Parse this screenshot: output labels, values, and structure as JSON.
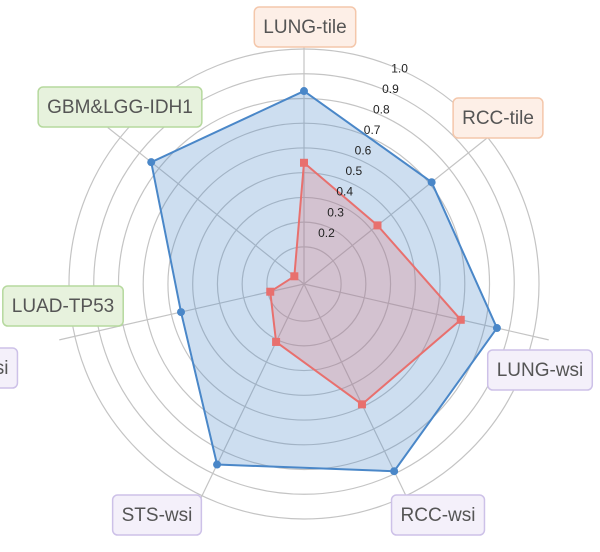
{
  "chart_data": {
    "type": "radar",
    "categories": [
      "LUNG-tile",
      "RCC-tile",
      "LUNG-wsi",
      "RCC-wsi",
      "STS-wsi",
      "LUAD-TP53",
      "GBM&LGG-IDH1"
    ],
    "series": [
      {
        "color": "#4a87c8",
        "values": [
          0.83,
          0.71,
          0.85,
          0.89,
          0.86,
          0.56,
          0.84
        ]
      },
      {
        "color": "#e8706e",
        "values": [
          0.54,
          0.43,
          0.7,
          0.59,
          0.31,
          0.19,
          0.1
        ]
      }
    ],
    "rlim": [
      0.05,
      1.0
    ],
    "rticks": [
      0.2,
      0.3,
      0.4,
      0.5,
      0.6,
      0.7,
      0.8,
      0.9,
      {
        "value": 1.0,
        "label": "1.0"
      }
    ],
    "annotations": [
      "wsi"
    ]
  }
}
